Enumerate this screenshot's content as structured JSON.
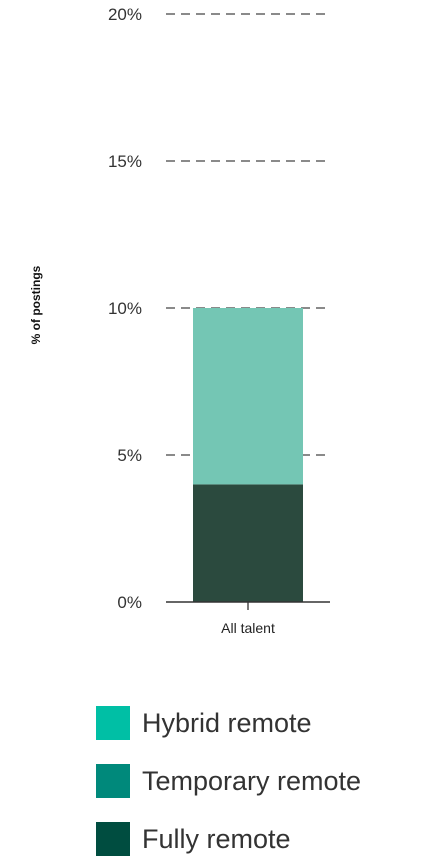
{
  "chart_data": {
    "type": "bar",
    "stacked": true,
    "categories": [
      "All talent"
    ],
    "series": [
      {
        "name": "Fully remote",
        "values": [
          4
        ],
        "color": "#2b4a3e"
      },
      {
        "name": "Temporary remote",
        "values": [
          0
        ],
        "color": "#00897b"
      },
      {
        "name": "Hybrid remote",
        "values": [
          6
        ],
        "color": "#74c6b4"
      }
    ],
    "ylabel": "% of postings",
    "ylim": [
      0,
      20
    ],
    "yticks": [
      "0%",
      "5%",
      "10%",
      "15%",
      "20%"
    ],
    "grid": "dashed-horizontal",
    "legend": {
      "placement": "bottom",
      "items": [
        {
          "label": "Hybrid remote",
          "color": "#00bfa5"
        },
        {
          "label": "Temporary remote",
          "color": "#00897b"
        },
        {
          "label": "Fully remote",
          "color": "#004d40"
        }
      ]
    }
  }
}
